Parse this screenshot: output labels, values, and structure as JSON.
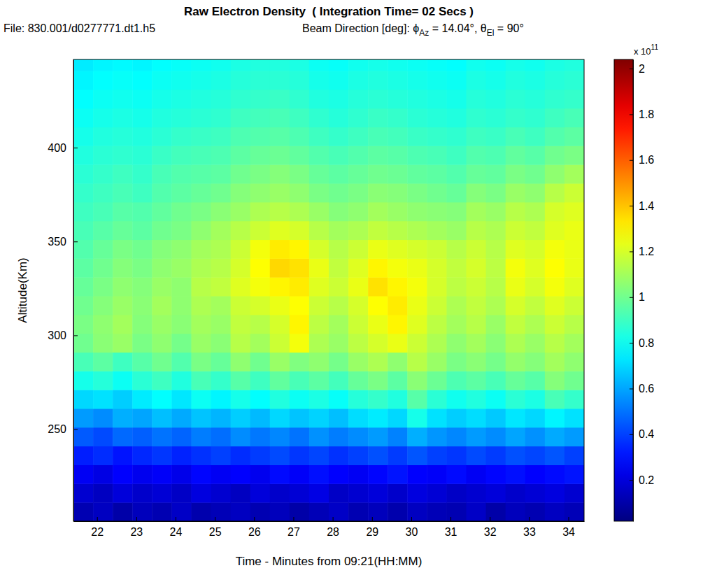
{
  "chart_data": {
    "type": "heatmap",
    "title": "Raw Electron Density  ( Integration Time= 02 Secs )",
    "subtitle": "File: 830.001/d0277771.dt1.h5",
    "beam_direction": [
      {
        "text": "Beam Direction [deg]: ϕ"
      },
      {
        "sub": "Az"
      },
      {
        "text": " = 14.04°, θ"
      },
      {
        "sub": "El"
      },
      {
        "text": " = 90°"
      }
    ],
    "x_label": "Time - Minutes from 09:21(HH:MM)",
    "y_label": "Altitude(Km)",
    "xlim": [
      21.4,
      34.4
    ],
    "ylim": [
      201,
      447
    ],
    "xticks": [
      22,
      23,
      24,
      25,
      26,
      27,
      28,
      29,
      30,
      31,
      32,
      33,
      34
    ],
    "yticks": [
      250,
      300,
      350,
      400
    ],
    "x_edges": [
      21.4,
      21.9,
      22.4,
      22.9,
      23.4,
      23.9,
      24.4,
      24.9,
      25.4,
      25.9,
      26.4,
      26.9,
      27.4,
      27.9,
      28.4,
      28.9,
      29.4,
      29.9,
      30.4,
      30.9,
      31.4,
      31.9,
      32.4,
      32.9,
      33.4,
      33.9,
      34.4
    ],
    "y_edges": [
      201,
      211,
      221,
      231,
      241,
      251,
      261,
      271,
      281,
      291,
      301,
      311,
      321,
      331,
      341,
      351,
      361,
      371,
      381,
      391,
      401,
      411,
      421,
      431,
      441,
      447
    ],
    "values": [
      [
        0.12,
        0.15,
        0.1,
        0.14,
        0.12,
        0.16,
        0.11,
        0.13,
        0.15,
        0.12,
        0.14,
        0.1,
        0.13,
        0.16,
        0.12,
        0.14,
        0.11,
        0.15,
        0.13,
        0.12,
        0.16,
        0.1,
        0.14,
        0.12,
        0.15,
        0.13
      ],
      [
        0.18,
        0.15,
        0.2,
        0.17,
        0.19,
        0.16,
        0.21,
        0.18,
        0.15,
        0.2,
        0.17,
        0.19,
        0.22,
        0.16,
        0.18,
        0.2,
        0.17,
        0.21,
        0.19,
        0.16,
        0.18,
        0.2,
        0.17,
        0.19,
        0.21,
        0.18
      ],
      [
        0.25,
        0.22,
        0.27,
        0.24,
        0.26,
        0.23,
        0.28,
        0.25,
        0.27,
        0.24,
        0.29,
        0.26,
        0.3,
        0.27,
        0.25,
        0.28,
        0.31,
        0.27,
        0.26,
        0.29,
        0.25,
        0.28,
        0.3,
        0.27,
        0.29,
        0.31
      ],
      [
        0.33,
        0.36,
        0.31,
        0.35,
        0.38,
        0.34,
        0.37,
        0.4,
        0.36,
        0.39,
        0.42,
        0.38,
        0.41,
        0.37,
        0.4,
        0.43,
        0.39,
        0.44,
        0.4,
        0.38,
        0.42,
        0.39,
        0.43,
        0.41,
        0.44,
        0.4
      ],
      [
        0.45,
        0.42,
        0.48,
        0.46,
        0.5,
        0.47,
        0.52,
        0.49,
        0.55,
        0.51,
        0.54,
        0.5,
        0.56,
        0.52,
        0.55,
        0.58,
        0.53,
        0.62,
        0.57,
        0.54,
        0.58,
        0.55,
        0.6,
        0.56,
        0.61,
        0.58
      ],
      [
        0.58,
        0.55,
        0.62,
        0.6,
        0.65,
        0.61,
        0.66,
        0.63,
        0.68,
        0.64,
        0.7,
        0.66,
        0.69,
        0.65,
        0.71,
        0.74,
        0.7,
        0.82,
        0.72,
        0.68,
        0.71,
        0.67,
        0.73,
        0.7,
        0.76,
        0.72
      ],
      [
        0.7,
        0.72,
        0.68,
        0.74,
        0.78,
        0.73,
        0.8,
        0.76,
        0.82,
        0.78,
        0.84,
        0.8,
        0.83,
        0.79,
        0.85,
        0.88,
        0.84,
        0.95,
        0.86,
        0.81,
        0.84,
        0.8,
        0.86,
        0.83,
        0.92,
        0.88
      ],
      [
        0.82,
        0.85,
        0.8,
        0.86,
        0.9,
        0.84,
        0.92,
        0.88,
        0.95,
        0.9,
        0.97,
        0.92,
        0.96,
        0.91,
        0.98,
        1.02,
        0.96,
        1.05,
        0.99,
        0.93,
        0.96,
        0.92,
        0.98,
        0.95,
        1.04,
        1.0
      ],
      [
        0.92,
        0.96,
        0.9,
        0.95,
        1.0,
        0.94,
        1.02,
        0.98,
        1.06,
        1.0,
        1.08,
        1.03,
        1.06,
        1.01,
        1.08,
        1.12,
        1.06,
        1.14,
        1.08,
        1.02,
        1.05,
        1.01,
        1.07,
        1.04,
        1.1,
        1.06
      ],
      [
        1.0,
        1.05,
        1.08,
        1.02,
        1.06,
        1.01,
        1.08,
        1.05,
        1.14,
        1.1,
        1.18,
        1.26,
        1.12,
        1.08,
        1.15,
        1.2,
        1.24,
        1.18,
        1.12,
        1.06,
        1.1,
        1.05,
        1.12,
        1.08,
        1.14,
        1.1
      ],
      [
        1.02,
        1.06,
        1.1,
        1.04,
        1.08,
        1.05,
        1.1,
        1.08,
        1.16,
        1.14,
        1.2,
        1.3,
        1.15,
        1.1,
        1.18,
        1.24,
        1.3,
        1.22,
        1.15,
        1.1,
        1.14,
        1.08,
        1.16,
        1.12,
        1.18,
        1.14
      ],
      [
        1.0,
        1.04,
        1.08,
        1.05,
        1.1,
        1.06,
        1.12,
        1.1,
        1.18,
        1.2,
        1.24,
        1.28,
        1.18,
        1.14,
        1.2,
        1.28,
        1.32,
        1.24,
        1.18,
        1.12,
        1.16,
        1.12,
        1.2,
        1.16,
        1.22,
        1.18
      ],
      [
        0.98,
        1.02,
        1.06,
        1.04,
        1.08,
        1.06,
        1.14,
        1.16,
        1.22,
        1.26,
        1.3,
        1.32,
        1.22,
        1.18,
        1.24,
        1.34,
        1.3,
        1.26,
        1.2,
        1.15,
        1.18,
        1.14,
        1.24,
        1.2,
        1.26,
        1.22
      ],
      [
        0.96,
        1.0,
        1.04,
        1.02,
        1.06,
        1.08,
        1.12,
        1.14,
        1.2,
        1.28,
        1.36,
        1.34,
        1.24,
        1.16,
        1.22,
        1.3,
        1.26,
        1.24,
        1.2,
        1.16,
        1.2,
        1.15,
        1.26,
        1.22,
        1.28,
        1.24
      ],
      [
        0.94,
        0.98,
        1.02,
        1.0,
        1.04,
        1.06,
        1.1,
        1.12,
        1.18,
        1.26,
        1.32,
        1.3,
        1.2,
        1.14,
        1.18,
        1.24,
        1.22,
        1.2,
        1.18,
        1.14,
        1.18,
        1.14,
        1.22,
        1.2,
        1.26,
        1.24
      ],
      [
        0.92,
        0.95,
        0.98,
        0.96,
        1.0,
        1.02,
        1.06,
        1.1,
        1.14,
        1.18,
        1.22,
        1.2,
        1.14,
        1.1,
        1.12,
        1.16,
        1.14,
        1.12,
        1.1,
        1.08,
        1.14,
        1.12,
        1.18,
        1.16,
        1.22,
        1.24
      ],
      [
        0.9,
        0.92,
        0.95,
        0.94,
        0.97,
        1.0,
        1.02,
        1.05,
        1.08,
        1.12,
        1.14,
        1.12,
        1.08,
        1.04,
        1.06,
        1.1,
        1.08,
        1.06,
        1.05,
        1.04,
        1.1,
        1.08,
        1.14,
        1.12,
        1.2,
        1.22
      ],
      [
        0.88,
        0.9,
        0.92,
        0.9,
        0.94,
        0.96,
        0.98,
        1.0,
        1.04,
        1.06,
        1.08,
        1.06,
        1.02,
        1.0,
        1.02,
        1.05,
        1.04,
        1.02,
        1.0,
        0.98,
        1.04,
        1.02,
        1.08,
        1.06,
        1.14,
        1.18
      ],
      [
        0.86,
        0.88,
        0.9,
        0.88,
        0.92,
        0.94,
        0.95,
        0.96,
        1.0,
        1.02,
        1.04,
        1.02,
        0.98,
        0.96,
        0.98,
        1.0,
        0.99,
        0.97,
        0.96,
        0.94,
        0.98,
        0.97,
        1.02,
        1.0,
        1.06,
        1.1
      ],
      [
        0.84,
        0.86,
        0.87,
        0.86,
        0.89,
        0.91,
        0.92,
        0.93,
        0.96,
        0.98,
        0.99,
        0.97,
        0.94,
        0.92,
        0.94,
        0.96,
        0.95,
        0.93,
        0.92,
        0.9,
        0.94,
        0.93,
        0.97,
        0.95,
        1.0,
        1.02
      ],
      [
        0.82,
        0.84,
        0.85,
        0.84,
        0.86,
        0.88,
        0.89,
        0.9,
        0.93,
        0.94,
        0.95,
        0.93,
        0.9,
        0.88,
        0.9,
        0.92,
        0.91,
        0.89,
        0.88,
        0.87,
        0.9,
        0.89,
        0.92,
        0.9,
        0.94,
        0.96
      ],
      [
        0.8,
        0.82,
        0.83,
        0.82,
        0.84,
        0.85,
        0.86,
        0.87,
        0.9,
        0.91,
        0.92,
        0.9,
        0.87,
        0.85,
        0.87,
        0.89,
        0.88,
        0.86,
        0.85,
        0.84,
        0.87,
        0.86,
        0.88,
        0.87,
        0.9,
        0.92
      ],
      [
        0.78,
        0.8,
        0.81,
        0.8,
        0.82,
        0.83,
        0.84,
        0.85,
        0.87,
        0.88,
        0.89,
        0.87,
        0.84,
        0.83,
        0.85,
        0.86,
        0.85,
        0.84,
        0.83,
        0.82,
        0.85,
        0.84,
        0.86,
        0.85,
        0.87,
        0.88
      ],
      [
        0.76,
        0.78,
        0.79,
        0.78,
        0.8,
        0.81,
        0.82,
        0.83,
        0.85,
        0.86,
        0.86,
        0.85,
        0.82,
        0.81,
        0.83,
        0.84,
        0.83,
        0.82,
        0.81,
        0.8,
        0.83,
        0.82,
        0.84,
        0.83,
        0.85,
        0.86
      ],
      [
        0.74,
        0.76,
        0.77,
        0.76,
        0.78,
        0.79,
        0.8,
        0.81,
        0.83,
        0.84,
        0.84,
        0.83,
        0.8,
        0.79,
        0.81,
        0.82,
        0.81,
        0.8,
        0.79,
        0.78,
        0.81,
        0.8,
        0.82,
        0.81,
        0.83,
        0.84
      ]
    ],
    "colorbar": {
      "range": [
        0.02,
        2.04
      ],
      "ticks": [
        0.2,
        0.4,
        0.6,
        0.8,
        1,
        1.2,
        1.4,
        1.6,
        1.8,
        2
      ],
      "multiplier": {
        "base": "x 10",
        "exponent": "11"
      }
    }
  }
}
